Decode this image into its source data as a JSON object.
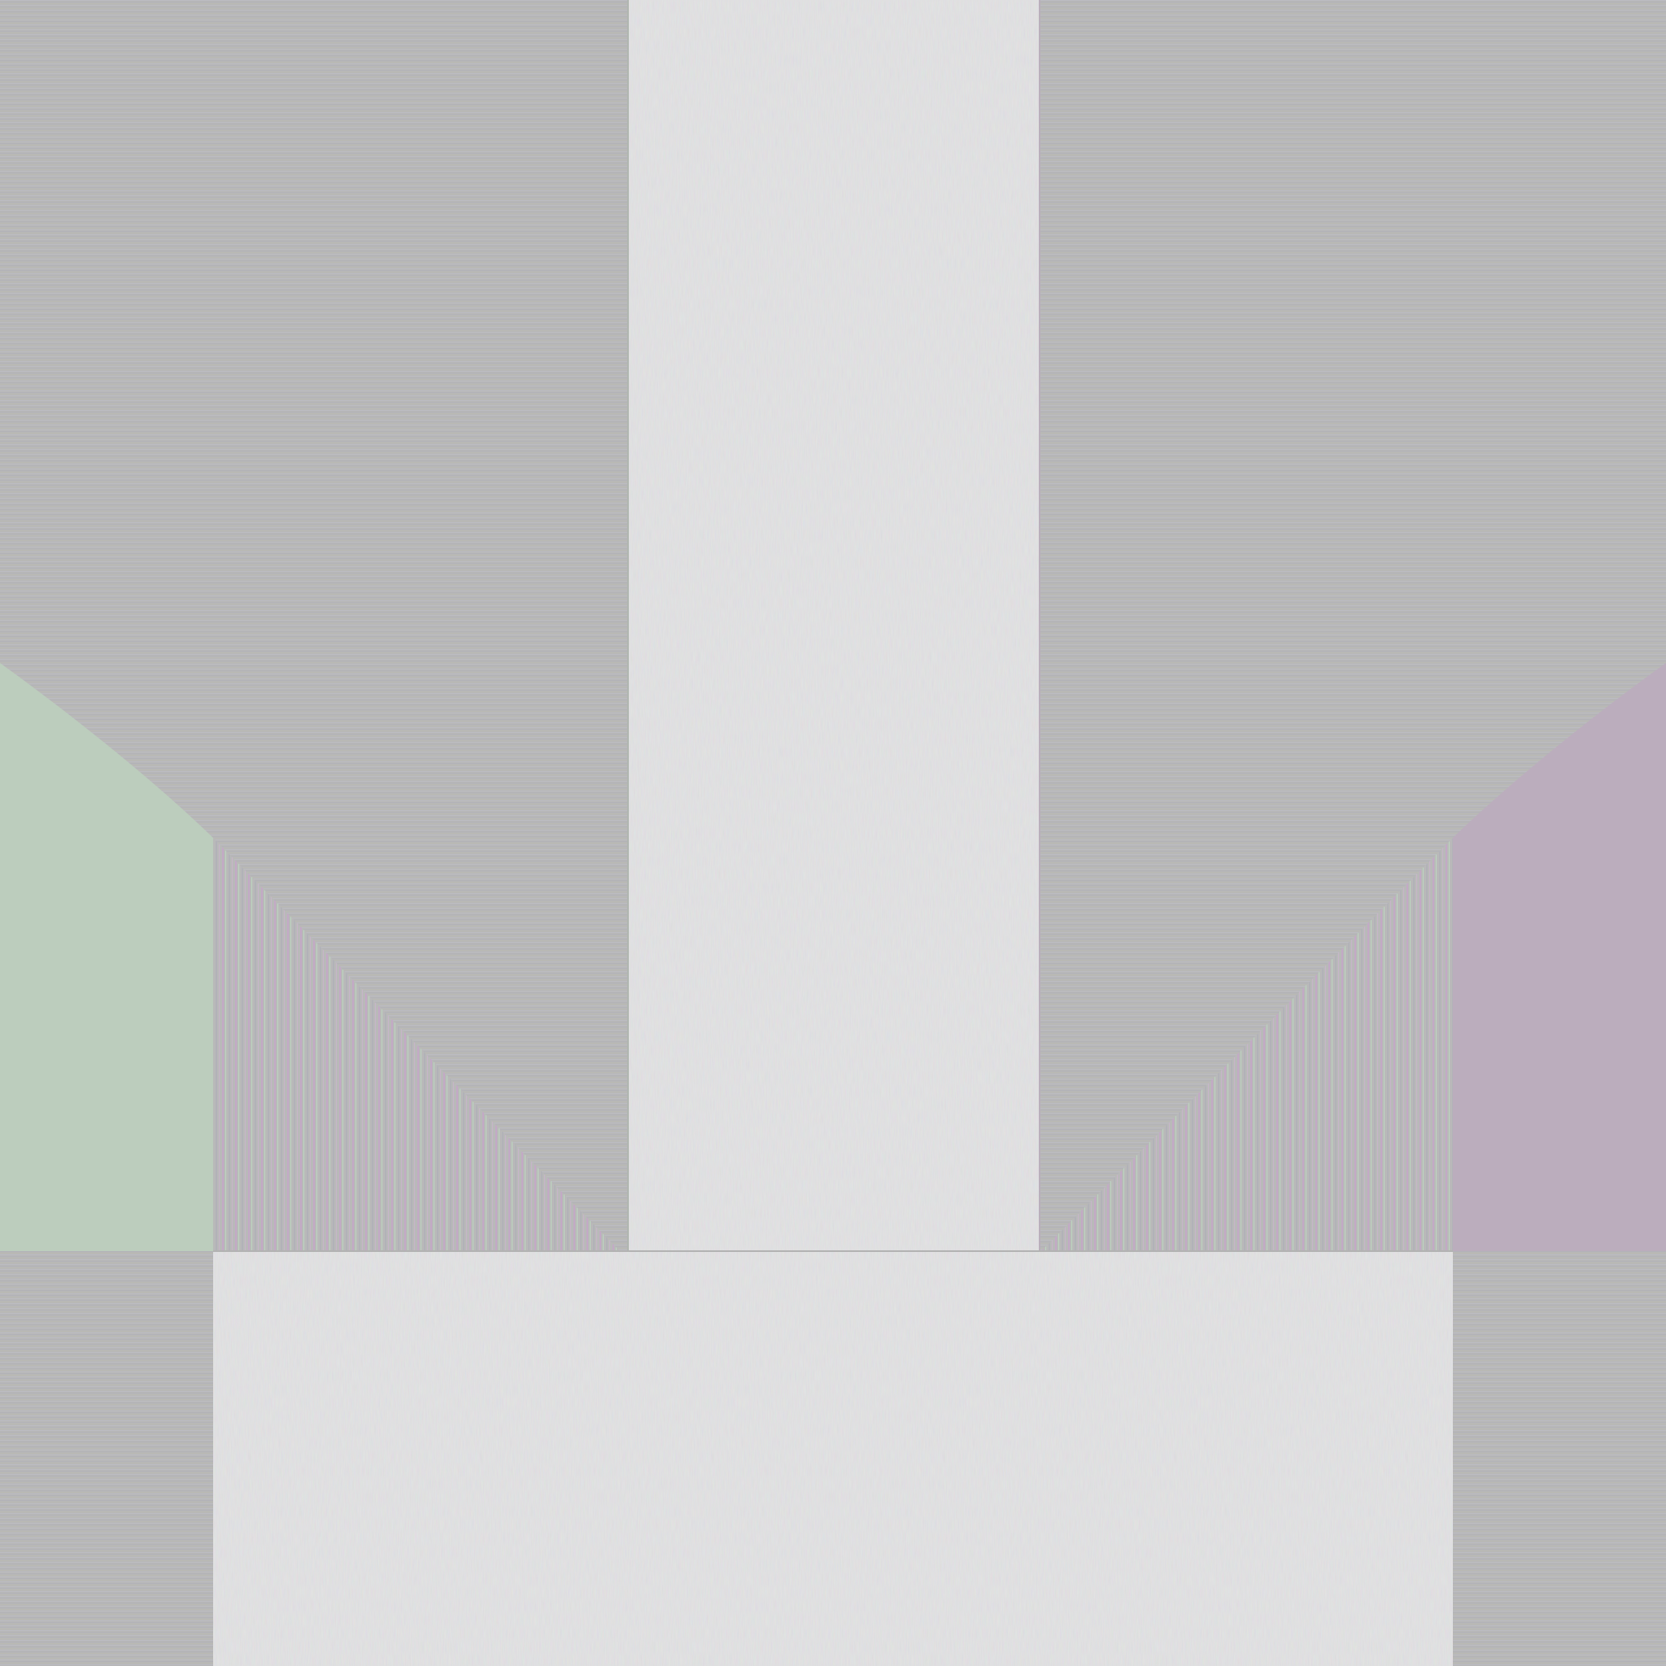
{
  "icon": {
    "name": "download-arrow-icon",
    "colors": {
      "surface": "#c0c0c0",
      "background": "#b6b6b6",
      "left_wing": "#bccdbd",
      "right_wing": "#bbadbd",
      "streak_green": "#bde5c0",
      "streak_purple": "#c5a7c9"
    }
  }
}
